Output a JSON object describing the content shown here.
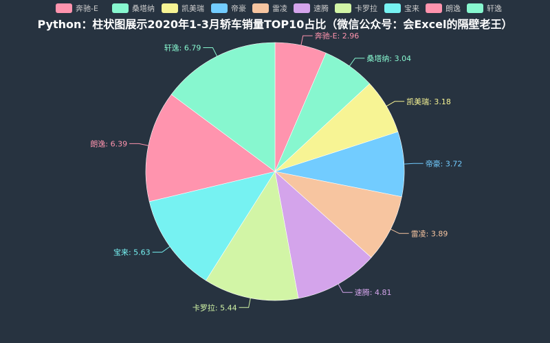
{
  "chart_data": {
    "type": "pie",
    "title": "Python：柱状图展示2020年1-3月轿车销量TOP10占比（微信公众号：会Excel的隔壁老王）",
    "legend_position": "top",
    "label_format": "name: value",
    "slices": [
      {
        "name": "奔驰-E",
        "value": 2.96,
        "color": "#ff94ae"
      },
      {
        "name": "桑塔纳",
        "value": 3.04,
        "color": "#87f7cf"
      },
      {
        "name": "凯美瑞",
        "value": 3.18,
        "color": "#f7f494"
      },
      {
        "name": "帝豪",
        "value": 3.72,
        "color": "#72ccff"
      },
      {
        "name": "雷凌",
        "value": 3.89,
        "color": "#f7c5a0"
      },
      {
        "name": "速腾",
        "value": 4.81,
        "color": "#d4a4eb"
      },
      {
        "name": "卡罗拉",
        "value": 5.44,
        "color": "#d2f5a6"
      },
      {
        "name": "宝来",
        "value": 5.63,
        "color": "#76f2f2"
      },
      {
        "name": "朗逸",
        "value": 6.39,
        "color": "#ff94ae"
      },
      {
        "name": "轩逸",
        "value": 6.79,
        "color": "#87f7cf"
      }
    ]
  }
}
